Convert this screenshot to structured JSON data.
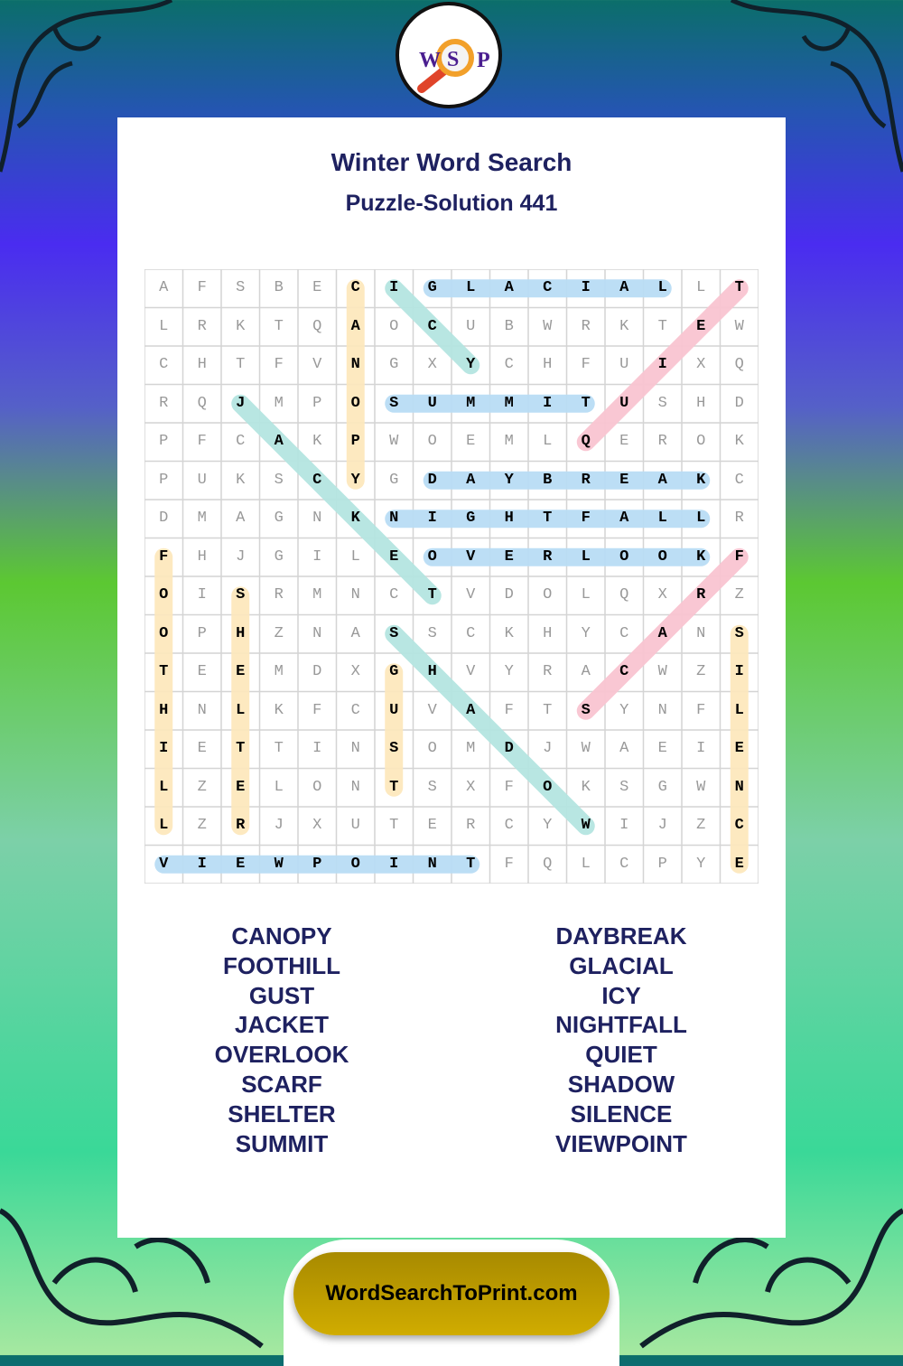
{
  "logo": {
    "letters": [
      "W",
      "S",
      "P"
    ]
  },
  "header": {
    "title": "Winter Word Search",
    "subtitle": "Puzzle-Solution 441"
  },
  "grid": {
    "rows": [
      "AFSBECIGLACIALLT",
      "LRKTQAOCUBWRKTEW",
      "CHTFVNGXYCHFUIXQ",
      "RQJMPOSUMMITUSHD",
      "PFCAKPWOEMLQEROK",
      "PUKSCYGDAYBREAKC",
      "DMAGNKNIGHTFALLR",
      "FHJGILEOVERLOOKF",
      "OISRMNCTVDOLQXRZ",
      "OPHZNASSCKHYCANS",
      "TEEMDXGHVYRACWZI",
      "HNLKFCUVAFTSYNFL",
      "IETTINSOMDJWAEIE",
      "LZELONTSXFOKSGWN",
      "LZRJXUTERCYWIJZC",
      "VIEWPOINTFQLCPYE"
    ],
    "solutions": [
      {
        "word": "CANOPY",
        "start": [
          0,
          5
        ],
        "end": [
          5,
          5
        ],
        "color": "#fde8bd"
      },
      {
        "word": "FOOTHILL",
        "start": [
          7,
          0
        ],
        "end": [
          14,
          0
        ],
        "color": "#fde8bd"
      },
      {
        "word": "SHELTER",
        "start": [
          8,
          2
        ],
        "end": [
          14,
          2
        ],
        "color": "#fde8bd"
      },
      {
        "word": "GUST",
        "start": [
          10,
          6
        ],
        "end": [
          13,
          6
        ],
        "color": "#fde8bd"
      },
      {
        "word": "SILENCE",
        "start": [
          9,
          15
        ],
        "end": [
          15,
          15
        ],
        "color": "#fde8bd"
      },
      {
        "word": "GLACIAL",
        "start": [
          0,
          7
        ],
        "end": [
          0,
          13
        ],
        "color": "#b9ddf5"
      },
      {
        "word": "SUMMIT",
        "start": [
          3,
          6
        ],
        "end": [
          3,
          11
        ],
        "color": "#b9ddf5"
      },
      {
        "word": "DAYBREAK",
        "start": [
          5,
          7
        ],
        "end": [
          5,
          14
        ],
        "color": "#b9ddf5"
      },
      {
        "word": "NIGHTFALL",
        "start": [
          6,
          6
        ],
        "end": [
          6,
          14
        ],
        "color": "#b9ddf5"
      },
      {
        "word": "OVERLOOK",
        "start": [
          7,
          7
        ],
        "end": [
          7,
          14
        ],
        "color": "#b9ddf5"
      },
      {
        "word": "VIEWPOINT",
        "start": [
          15,
          0
        ],
        "end": [
          15,
          8
        ],
        "color": "#b9ddf5"
      },
      {
        "word": "ICY",
        "start": [
          0,
          6
        ],
        "end": [
          2,
          8
        ],
        "color": "#b5e5e1"
      },
      {
        "word": "JACKET",
        "start": [
          3,
          2
        ],
        "end": [
          8,
          7
        ],
        "color": "#b5e5e1"
      },
      {
        "word": "SHADOW",
        "start": [
          9,
          6
        ],
        "end": [
          14,
          11
        ],
        "color": "#b5e5e1"
      },
      {
        "word": "QUIET",
        "start": [
          4,
          11
        ],
        "end": [
          0,
          15
        ],
        "color": "#f9c5d1"
      },
      {
        "word": "SCARF",
        "start": [
          11,
          11
        ],
        "end": [
          7,
          15
        ],
        "color": "#f9c5d1"
      }
    ]
  },
  "word_list": {
    "left": [
      "CANOPY",
      "FOOTHILL",
      "GUST",
      "JACKET",
      "OVERLOOK",
      "SCARF",
      "SHELTER",
      "SUMMIT"
    ],
    "right": [
      "DAYBREAK",
      "GLACIAL",
      "ICY",
      "NIGHTFALL",
      "QUIET",
      "SHADOW",
      "SILENCE",
      "VIEWPOINT"
    ]
  },
  "footer": {
    "site": "WordSearchToPrint.com"
  }
}
